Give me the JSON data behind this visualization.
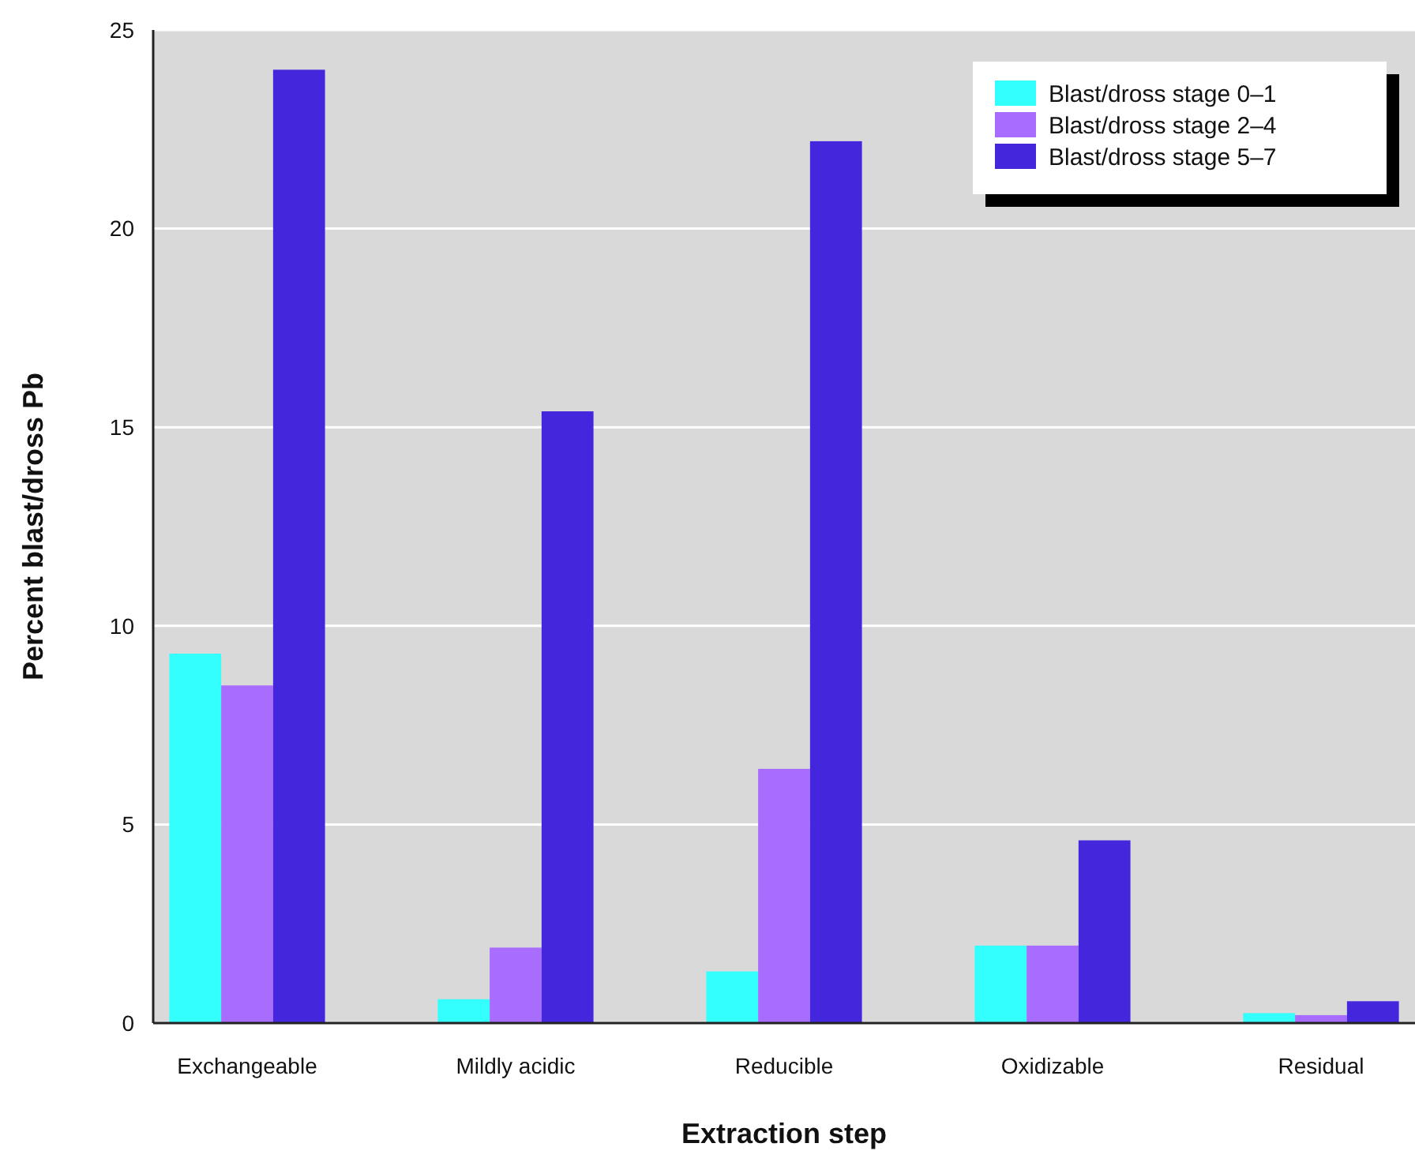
{
  "chart_data": {
    "type": "bar",
    "xlabel": "Extraction step",
    "ylabel": "Percent blast/dross Pb",
    "categories": [
      "Exchangeable",
      "Mildly acidic",
      "Reducible",
      "Oxidizable",
      "Residual"
    ],
    "series": [
      {
        "name": "Blast/dross stage 0–1",
        "color": "#33ffff",
        "values": [
          9.3,
          0.6,
          1.3,
          1.95,
          0.25
        ]
      },
      {
        "name": "Blast/dross stage 2–4",
        "color": "#a86cff",
        "values": [
          8.5,
          1.9,
          6.4,
          1.95,
          0.2
        ]
      },
      {
        "name": "Blast/dross stage 5–7",
        "color": "#4426dd",
        "values": [
          24.0,
          15.4,
          22.2,
          4.6,
          0.55
        ]
      }
    ],
    "ylim": [
      0,
      25
    ],
    "yticks": [
      0,
      5,
      10,
      15,
      20,
      25
    ],
    "grid": "y",
    "legend": "top right"
  }
}
